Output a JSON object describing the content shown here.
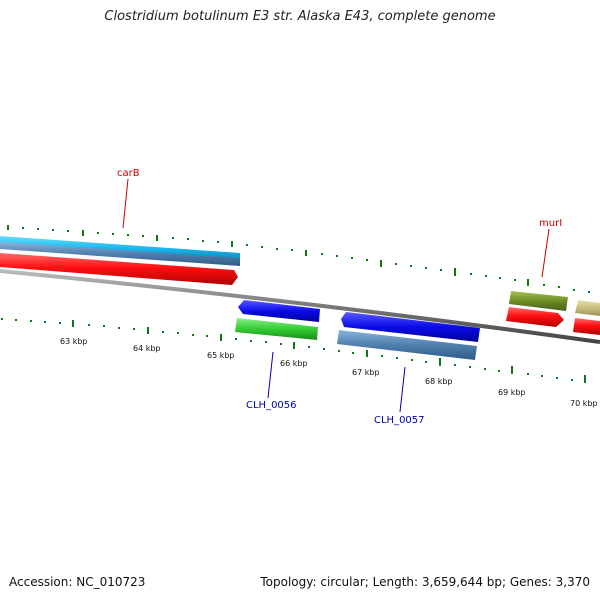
{
  "title": "Clostridium botulinum E3 str. Alaska E43, complete genome",
  "footer": {
    "accession": "Accession: NC_010723",
    "summary": "Topology: circular; Length: 3,659,644 bp; Genes: 3,370"
  },
  "scale": {
    "kbp_labels": [
      "63 kbp",
      "64 kbp",
      "65 kbp",
      "66 kbp",
      "67 kbp",
      "68 kbp",
      "69 kbp",
      "70 kbp"
    ]
  },
  "genes": {
    "top_labels": [
      "carB",
      "murI"
    ],
    "bottom_labels": [
      "CLH_0056",
      "CLH_0057"
    ]
  },
  "colors": {
    "top_label": "#cc0000",
    "bottom_label": "#0000aa",
    "tick": "#117711",
    "backbone": "#777777"
  }
}
